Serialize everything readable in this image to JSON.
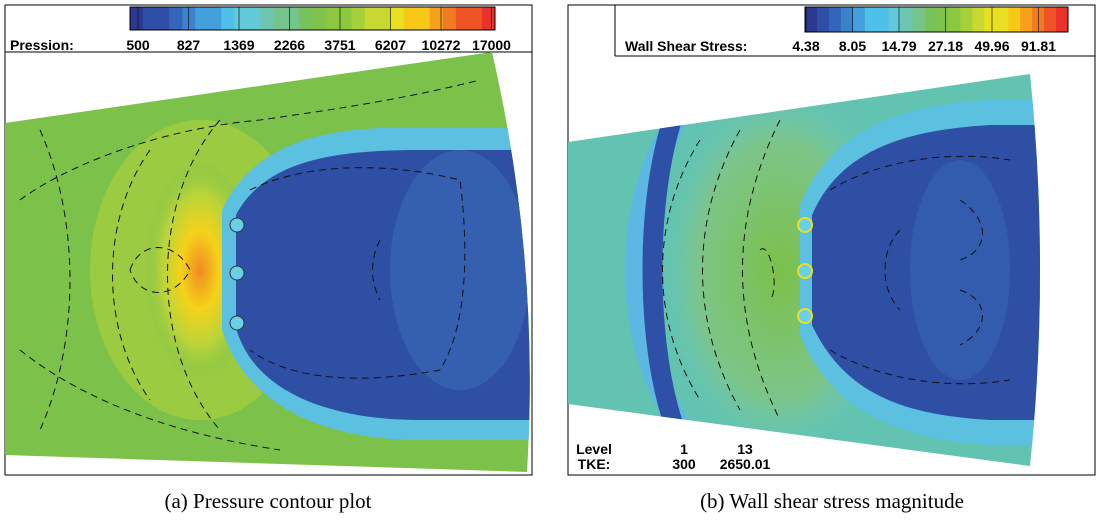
{
  "panels": [
    {
      "legend": {
        "title": "Pression:",
        "values": [
          500,
          827,
          1369,
          2266,
          3751,
          6207,
          10272,
          17000
        ]
      },
      "caption": "(a) Pressure contour plot"
    },
    {
      "legend": {
        "title": "Wall Shear Stress:",
        "values": [
          4.38,
          8.05,
          14.79,
          27.18,
          49.96,
          91.81
        ]
      },
      "caption": "(b) Wall shear stress magnitude",
      "level_table": {
        "rows": [
          [
            "Level",
            1,
            13
          ],
          [
            "TKE:",
            300,
            2650.01
          ]
        ]
      }
    }
  ]
}
